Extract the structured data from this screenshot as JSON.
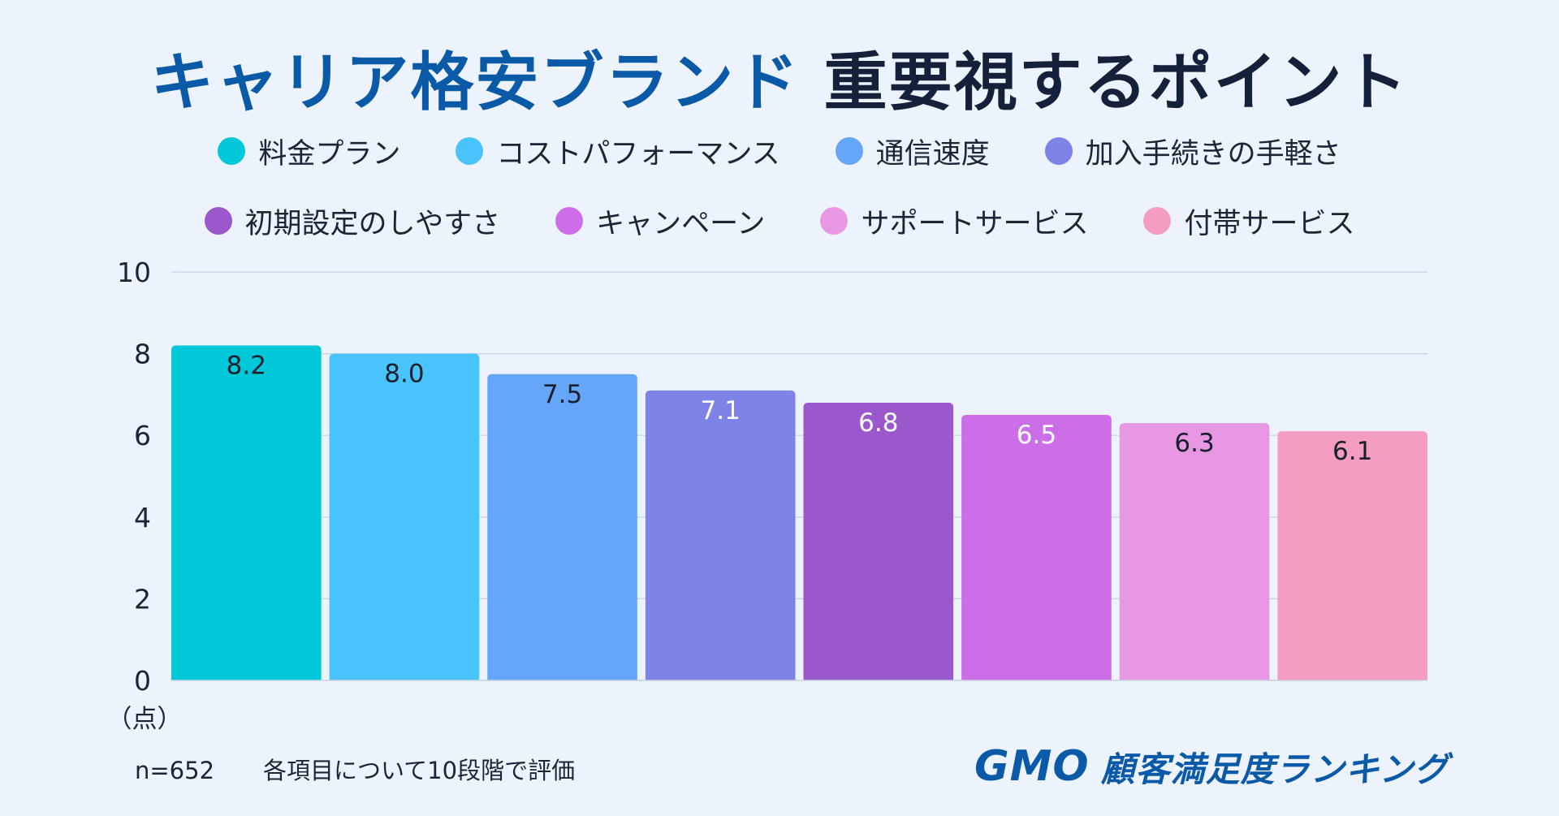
{
  "title_part1": "キャリア格安ブランド",
  "title_part2": "重要視するポイント",
  "chart_data": {
    "type": "bar",
    "categories": [
      "料金プラン",
      "コストパフォーマンス",
      "通信速度",
      "加入手続きの手軽さ",
      "初期設定のしやすさ",
      "キャンペーン",
      "サポートサービス",
      "付帯サービス"
    ],
    "values": [
      8.2,
      8.0,
      7.5,
      7.1,
      6.8,
      6.5,
      6.3,
      6.1
    ],
    "value_labels": [
      "8.2",
      "8.0",
      "7.5",
      "7.1",
      "6.8",
      "6.5",
      "6.3",
      "6.1"
    ],
    "colors": [
      "#00c8d9",
      "#48c3fb",
      "#66a6f8",
      "#7f82e6",
      "#9a58cc",
      "#cc6ee8",
      "#e898e2",
      "#f49dc0"
    ],
    "label_colors": [
      "#1a1f2e",
      "#1a1f2e",
      "#1a1f2e",
      "#ffffff",
      "#ffffff",
      "#ffffff",
      "#1a1f2e",
      "#1a1f2e"
    ],
    "ylim": [
      0,
      10
    ],
    "yticks": [
      "0",
      "2",
      "4",
      "6",
      "8",
      "10"
    ],
    "y_unit": "（点）",
    "grid": true,
    "legend_position": "top"
  },
  "footnote": {
    "sample": "n=652",
    "note": "各項目について10段階で評価"
  },
  "logo": {
    "brand": "GMO",
    "text": "顧客満足度ランキング"
  }
}
